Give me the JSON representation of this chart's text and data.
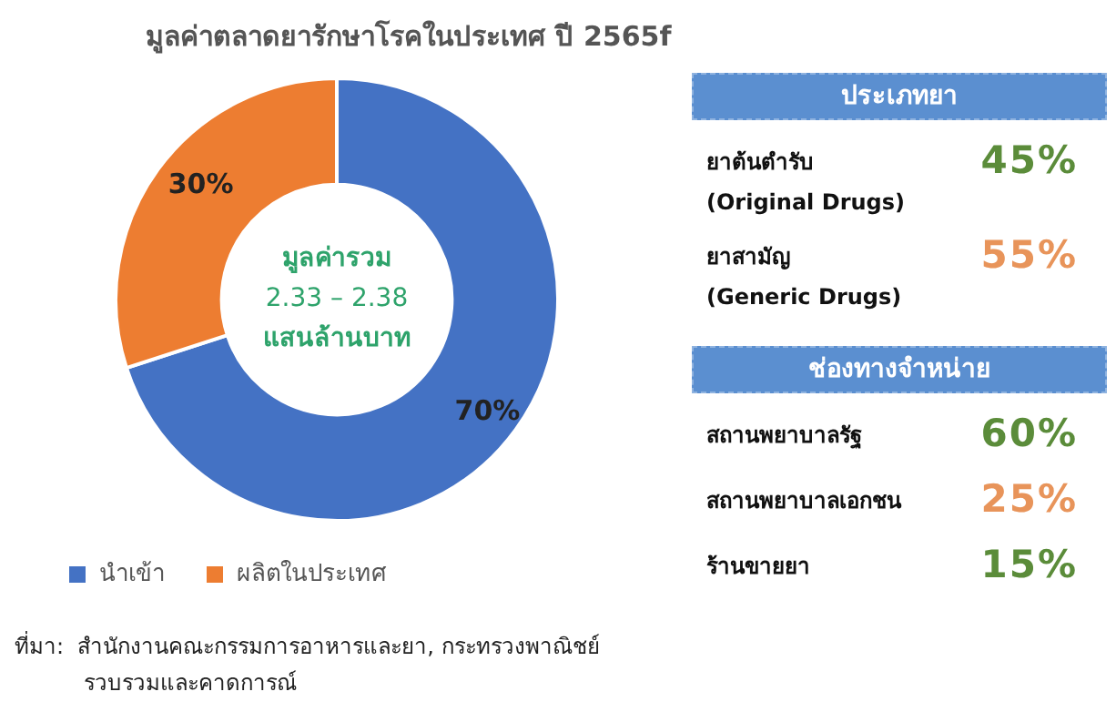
{
  "chart_data": [
    {
      "type": "donut",
      "title": "มูลค่าตลาดยารักษาโรคในประเทศ ปี 2565f",
      "categories": [
        "นำเข้า",
        "ผลิตในประเทศ"
      ],
      "values": [
        70,
        30
      ],
      "colors": [
        "#4472c4",
        "#ed7d31"
      ],
      "value_labels": [
        "70%",
        "30%"
      ],
      "legend": "bottom",
      "annotations": [
        "มูลค่ารวม\n2.33 – 2.38\nแสนล้านบาท",
        "ที่มา:  สำนักงานคณะกรรมการอาหารและยา, กระทรวงพาณิชย์\n          รวบรวมและคาดการณ์"
      ]
    },
    {
      "type": "other",
      "title": "ประเภทยา",
      "categories": [
        "ยาต้นตำรับ\n(Original Drugs)",
        "ยาสามัญ\n(Generic Drugs)"
      ],
      "values": [
        45,
        55
      ],
      "colors": [
        "#5b8c3a",
        "#e8945a"
      ],
      "value_labels": [
        "45%",
        "55%"
      ]
    },
    {
      "type": "other",
      "title": "ช่องทางจำหน่าย",
      "categories": [
        "สถานพยาบาลรัฐ",
        "สถานพยาบาลเอกชน",
        "ร้านขายยา"
      ],
      "values": [
        60,
        25,
        15
      ],
      "colors": [
        "#5b8c3a",
        "#e8945a",
        "#5b8c3a"
      ],
      "value_labels": [
        "60%",
        "25%",
        "15%"
      ]
    }
  ]
}
